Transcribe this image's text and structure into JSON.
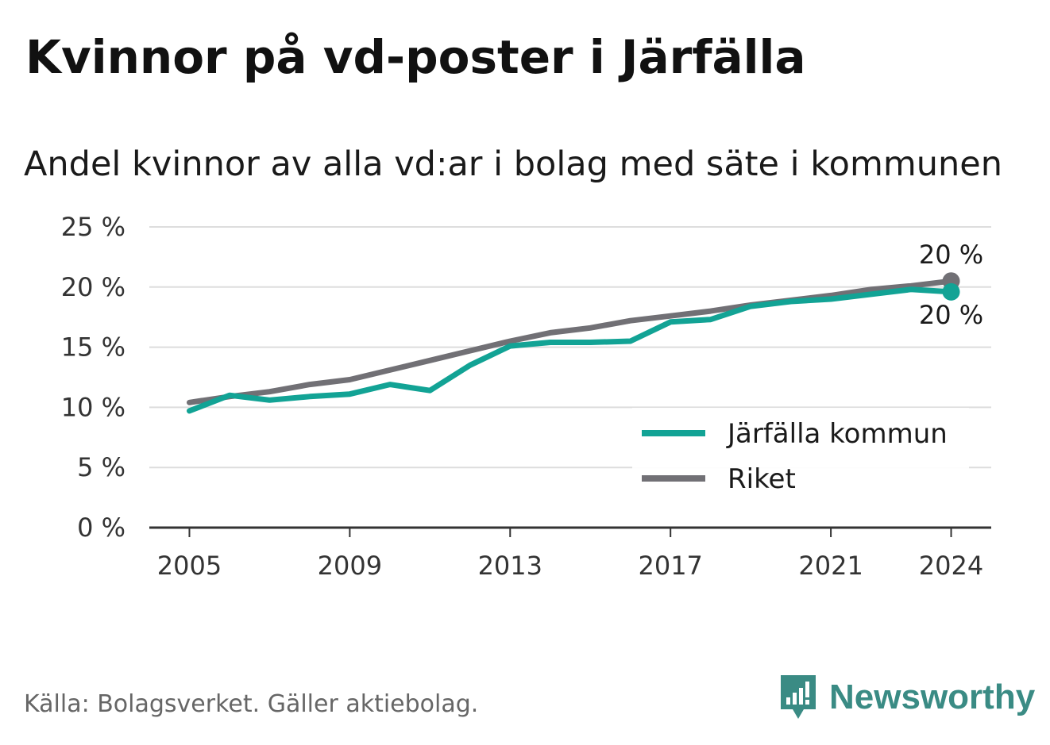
{
  "chart_data": {
    "type": "line",
    "title": "Kvinnor på vd-poster i Järfälla",
    "subtitle": "Andel kvinnor av alla vd:ar i bolag med säte i kommunen",
    "xlabel": "",
    "ylabel": "",
    "x": [
      2005,
      2006,
      2007,
      2008,
      2009,
      2010,
      2011,
      2012,
      2013,
      2014,
      2015,
      2016,
      2017,
      2018,
      2019,
      2020,
      2021,
      2022,
      2023,
      2024
    ],
    "xlim": [
      2004,
      2025
    ],
    "ylim": [
      0,
      25
    ],
    "x_ticks": [
      2005,
      2009,
      2013,
      2017,
      2021,
      2024
    ],
    "x_tick_labels": [
      "2005",
      "2009",
      "2013",
      "2017",
      "2021",
      "2024"
    ],
    "y_ticks": [
      0,
      5,
      10,
      15,
      20,
      25
    ],
    "y_tick_labels": [
      "0 %",
      "5 %",
      "10 %",
      "15 %",
      "20 %",
      "25 %"
    ],
    "grid": true,
    "legend_position": "bottom-right",
    "series": [
      {
        "name": "Järfälla kommun",
        "color": "#12a395",
        "values": [
          9.7,
          11.0,
          10.6,
          10.9,
          11.1,
          11.9,
          11.4,
          13.5,
          15.1,
          15.4,
          15.4,
          15.5,
          17.1,
          17.3,
          18.4,
          18.8,
          19.0,
          19.4,
          19.8,
          19.6
        ],
        "end_label": "20 %"
      },
      {
        "name": "Riket",
        "color": "#717075",
        "values": [
          10.4,
          10.9,
          11.3,
          11.9,
          12.3,
          13.1,
          13.9,
          14.7,
          15.5,
          16.2,
          16.6,
          17.2,
          17.6,
          18.0,
          18.5,
          18.9,
          19.3,
          19.8,
          20.1,
          20.5
        ],
        "end_label": "20 %"
      }
    ]
  },
  "footer": {
    "source": "Källa: Bolagsverket. Gäller aktiebolag.",
    "brand": "Newsworthy",
    "brand_icon": "newsworthy-bar-chart-icon",
    "brand_color": "#3a8b84"
  }
}
